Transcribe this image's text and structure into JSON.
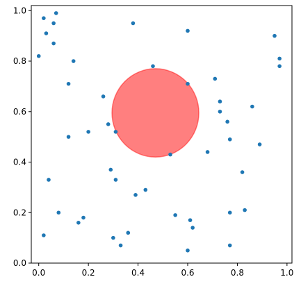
{
  "chart_data": {
    "type": "scatter",
    "title": "",
    "xlabel": "",
    "ylabel": "",
    "xlim": [
      -0.03,
      1.02
    ],
    "ylim": [
      0.0,
      1.02
    ],
    "grid": false,
    "xticks": [
      {
        "value": 0.0,
        "label": "0.0"
      },
      {
        "value": 0.2,
        "label": "0.2"
      },
      {
        "value": 0.4,
        "label": "0.4"
      },
      {
        "value": 0.6,
        "label": "0.6"
      },
      {
        "value": 0.8,
        "label": "0.8"
      },
      {
        "value": 1.0,
        "label": "1.0"
      }
    ],
    "yticks": [
      {
        "value": 0.0,
        "label": "0.0"
      },
      {
        "value": 0.2,
        "label": "0.2"
      },
      {
        "value": 0.4,
        "label": "0.4"
      },
      {
        "value": 0.6,
        "label": "0.6"
      },
      {
        "value": 0.8,
        "label": "0.8"
      },
      {
        "value": 1.0,
        "label": "1.0"
      }
    ],
    "point_color": "#1f77b4",
    "points": [
      [
        0.02,
        0.97
      ],
      [
        0.07,
        0.99
      ],
      [
        0.06,
        0.95
      ],
      [
        0.03,
        0.91
      ],
      [
        0.06,
        0.87
      ],
      [
        0.0,
        0.82
      ],
      [
        0.14,
        0.8
      ],
      [
        0.12,
        0.71
      ],
      [
        0.38,
        0.95
      ],
      [
        0.6,
        0.92
      ],
      [
        0.46,
        0.78
      ],
      [
        0.6,
        0.71
      ],
      [
        0.71,
        0.73
      ],
      [
        0.73,
        0.64
      ],
      [
        0.73,
        0.6
      ],
      [
        0.76,
        0.56
      ],
      [
        0.77,
        0.49
      ],
      [
        0.86,
        0.62
      ],
      [
        0.89,
        0.47
      ],
      [
        0.95,
        0.9
      ],
      [
        0.97,
        0.81
      ],
      [
        0.97,
        0.78
      ],
      [
        0.26,
        0.66
      ],
      [
        0.28,
        0.55
      ],
      [
        0.31,
        0.52
      ],
      [
        0.2,
        0.52
      ],
      [
        0.12,
        0.5
      ],
      [
        0.53,
        0.43
      ],
      [
        0.68,
        0.44
      ],
      [
        0.29,
        0.37
      ],
      [
        0.31,
        0.33
      ],
      [
        0.04,
        0.33
      ],
      [
        0.82,
        0.36
      ],
      [
        0.43,
        0.29
      ],
      [
        0.39,
        0.27
      ],
      [
        0.55,
        0.19
      ],
      [
        0.61,
        0.17
      ],
      [
        0.62,
        0.14
      ],
      [
        0.77,
        0.2
      ],
      [
        0.83,
        0.21
      ],
      [
        0.08,
        0.2
      ],
      [
        0.18,
        0.18
      ],
      [
        0.16,
        0.16
      ],
      [
        0.36,
        0.12
      ],
      [
        0.3,
        0.1
      ],
      [
        0.33,
        0.07
      ],
      [
        0.6,
        0.05
      ],
      [
        0.77,
        0.07
      ],
      [
        0.02,
        0.11
      ]
    ],
    "circle": {
      "center": [
        0.47,
        0.595
      ],
      "radius": 0.175,
      "fill": "#ff0000",
      "opacity": 0.5
    }
  }
}
